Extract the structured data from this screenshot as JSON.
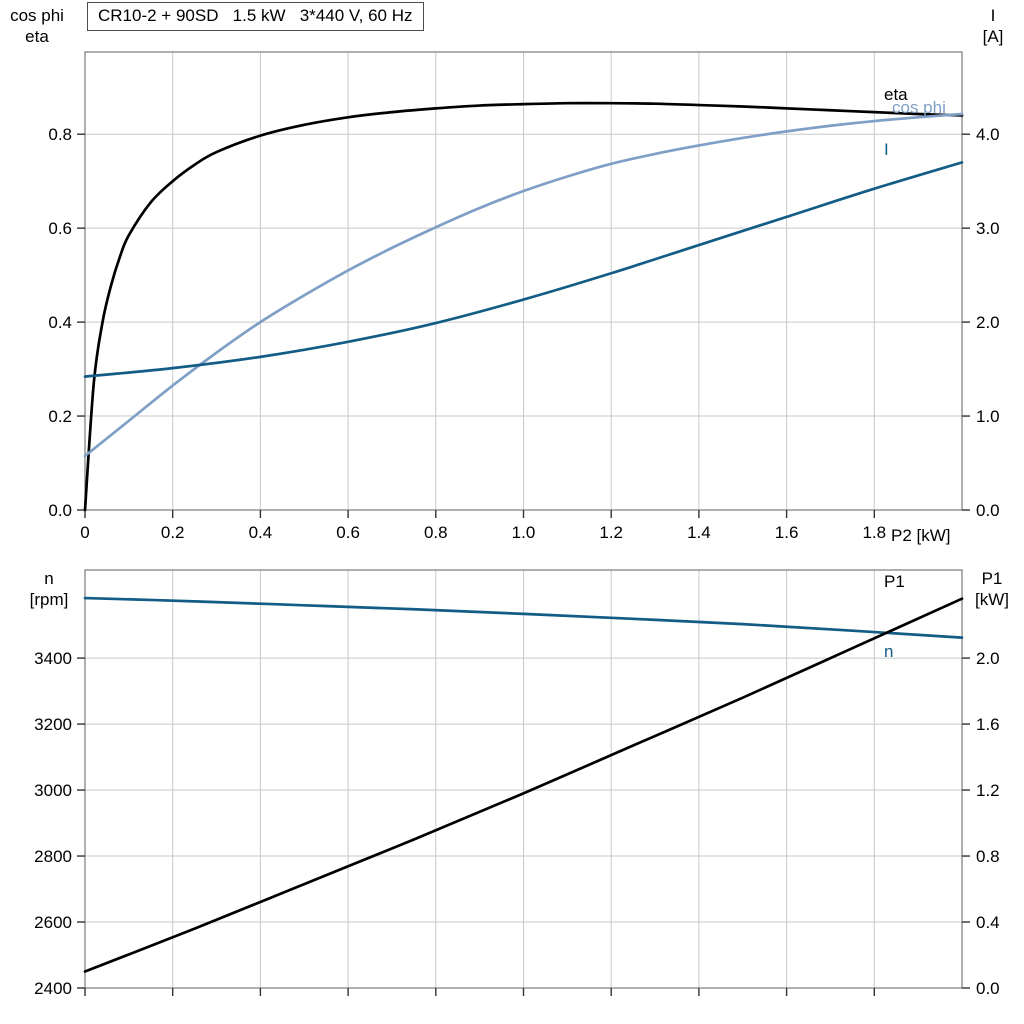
{
  "header": {
    "title": "CR10-2 + 90SD   1.5 kW   3*440 V, 60 Hz"
  },
  "labels": {
    "top_left_1": "cos phi",
    "top_left_2": "eta",
    "top_right_1": "I",
    "top_right_2": "[A]",
    "x_axis": "P2 [kW]",
    "curve_eta": "eta",
    "curve_cos_phi": "cos phi",
    "curve_I": "I",
    "bottom_left_1": "n",
    "bottom_left_2": "[rpm]",
    "bottom_right_1": "P1",
    "bottom_right_2": "[kW]",
    "curve_P1": "P1",
    "curve_n": "n"
  },
  "colors": {
    "grid": "#c9c9c9",
    "frame": "#7a7a7a",
    "tick": "#333333",
    "black": "#000000",
    "light_blue": "#7f9fc6",
    "dark_blue": "#135c85"
  },
  "chart_data": [
    {
      "type": "line",
      "title": "CR10-2 + 90SD  1.5 kW  3*440 V, 60 Hz",
      "xlabel": "P2 [kW]",
      "x_range": [
        0,
        2.0
      ],
      "x_ticks": [
        0,
        0.2,
        0.4,
        0.6,
        0.8,
        1.0,
        1.2,
        1.4,
        1.6,
        1.8
      ],
      "x_tick_labels": [
        "0",
        "0.2",
        "0.4",
        "0.6",
        "0.8",
        "1.0",
        "1.2",
        "1.4",
        "1.6",
        "1.8"
      ],
      "grid": true,
      "left_axis": {
        "label": "cos phi / eta",
        "range": [
          0,
          0.975
        ],
        "ticks": [
          0,
          0.2,
          0.4,
          0.6,
          0.8
        ],
        "tick_labels": [
          "0.0",
          "0.2",
          "0.4",
          "0.6",
          "0.8"
        ]
      },
      "right_axis": {
        "label": "I [A]",
        "range": [
          0,
          4.875
        ],
        "ticks": [
          0,
          1.0,
          2.0,
          3.0,
          4.0
        ],
        "tick_labels": [
          "0.0",
          "1.0",
          "2.0",
          "3.0",
          "4.0"
        ]
      },
      "series": [
        {
          "name": "eta",
          "axis": "left",
          "color": "#000000",
          "x": [
            0,
            0.02,
            0.04,
            0.06,
            0.08,
            0.1,
            0.15,
            0.2,
            0.25,
            0.3,
            0.4,
            0.5,
            0.6,
            0.7,
            0.8,
            0.9,
            1.0,
            1.1,
            1.2,
            1.3,
            1.4,
            1.5,
            1.6,
            1.7,
            1.8,
            1.9,
            2.0
          ],
          "y": [
            0,
            0.27,
            0.4,
            0.48,
            0.54,
            0.585,
            0.655,
            0.7,
            0.735,
            0.762,
            0.797,
            0.82,
            0.836,
            0.847,
            0.855,
            0.861,
            0.864,
            0.866,
            0.866,
            0.865,
            0.862,
            0.859,
            0.855,
            0.851,
            0.847,
            0.843,
            0.84
          ]
        },
        {
          "name": "cos phi",
          "axis": "left",
          "color": "#7f9fc6",
          "x": [
            0,
            0.1,
            0.2,
            0.3,
            0.4,
            0.5,
            0.6,
            0.7,
            0.8,
            0.9,
            1.0,
            1.1,
            1.2,
            1.3,
            1.4,
            1.5,
            1.6,
            1.7,
            1.8,
            1.9,
            2.0
          ],
          "y": [
            0.115,
            0.19,
            0.265,
            0.335,
            0.4,
            0.457,
            0.51,
            0.558,
            0.602,
            0.643,
            0.679,
            0.71,
            0.737,
            0.758,
            0.776,
            0.792,
            0.806,
            0.818,
            0.828,
            0.836,
            0.843
          ]
        },
        {
          "name": "I",
          "axis": "right",
          "color": "#135c85",
          "x": [
            0,
            0.2,
            0.4,
            0.6,
            0.8,
            1.0,
            1.2,
            1.4,
            1.6,
            1.8,
            2.0
          ],
          "y": [
            1.42,
            1.51,
            1.63,
            1.79,
            1.99,
            2.24,
            2.52,
            2.82,
            3.12,
            3.42,
            3.7
          ]
        }
      ]
    },
    {
      "type": "line",
      "title": "",
      "xlabel": "",
      "x_range": [
        0,
        2.0
      ],
      "x_ticks": [
        0,
        0.2,
        0.4,
        0.6,
        0.8,
        1.0,
        1.2,
        1.4,
        1.6,
        1.8
      ],
      "x_tick_labels": [],
      "grid": true,
      "left_axis": {
        "label": "n [rpm]",
        "range": [
          2400,
          3667
        ],
        "ticks": [
          2400,
          2600,
          2800,
          3000,
          3200,
          3400
        ],
        "tick_labels": [
          "2400",
          "2600",
          "2800",
          "3000",
          "3200",
          "3400"
        ]
      },
      "right_axis": {
        "label": "P1 [kW]",
        "range": [
          0,
          2.534
        ],
        "ticks": [
          0,
          0.4,
          0.8,
          1.2,
          1.6,
          2.0
        ],
        "tick_labels": [
          "0.0",
          "0.4",
          "0.8",
          "1.2",
          "1.6",
          "2.0"
        ]
      },
      "series": [
        {
          "name": "n",
          "axis": "left",
          "color": "#135c85",
          "x": [
            0,
            0.25,
            0.5,
            0.75,
            1.0,
            1.25,
            1.5,
            1.75,
            2.0
          ],
          "y": [
            3582,
            3572,
            3560,
            3548,
            3534,
            3519,
            3503,
            3483,
            3462
          ]
        },
        {
          "name": "P1",
          "axis": "right",
          "color": "#000000",
          "x": [
            0,
            0.25,
            0.5,
            0.75,
            1.0,
            1.25,
            1.5,
            1.75,
            2.0
          ],
          "y": [
            0.1,
            0.36,
            0.63,
            0.9,
            1.18,
            1.47,
            1.76,
            2.06,
            2.36
          ]
        }
      ]
    }
  ]
}
